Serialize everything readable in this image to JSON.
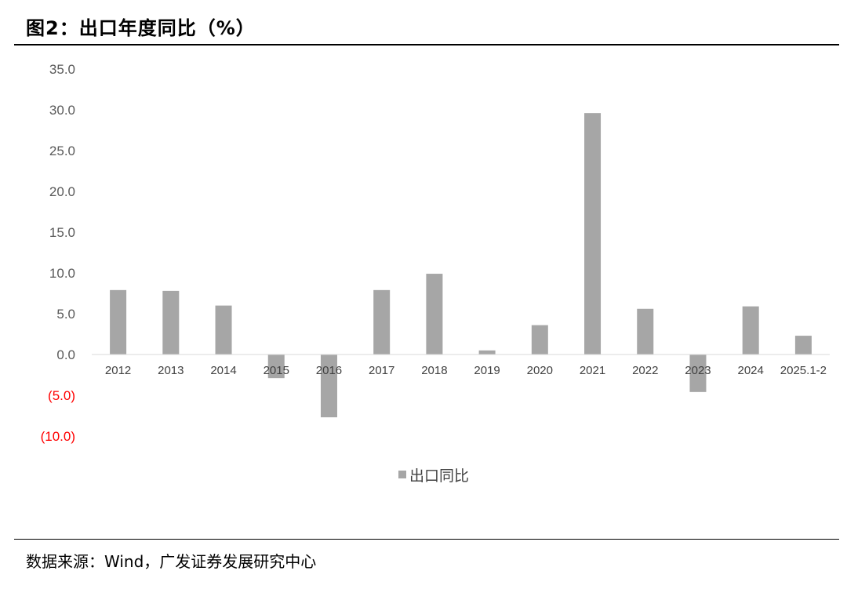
{
  "header": {
    "title": "图2：出口年度同比（%）"
  },
  "footer": {
    "source": "数据来源：Wind，广发证券发展研究中心"
  },
  "colors": {
    "bar": "#a6a6a6",
    "negative_tick": "#ff0000",
    "tick": "#595959"
  },
  "chart_data": {
    "type": "bar",
    "title": "",
    "xlabel": "",
    "ylabel": "",
    "categories": [
      "2012",
      "2013",
      "2014",
      "2015",
      "2016",
      "2017",
      "2018",
      "2019",
      "2020",
      "2021",
      "2022",
      "2023",
      "2024",
      "2025.1-2"
    ],
    "series": [
      {
        "name": "出口同比",
        "values": [
          7.9,
          7.8,
          6.0,
          -2.9,
          -7.7,
          7.9,
          9.9,
          0.5,
          3.6,
          29.6,
          5.6,
          -4.6,
          5.9,
          2.3
        ]
      }
    ],
    "ylim": [
      -10,
      35
    ],
    "yticks": [
      35,
      30,
      25,
      20,
      15,
      10,
      5,
      0,
      -5,
      -10
    ],
    "ytick_labels": [
      "35.0",
      "30.0",
      "25.0",
      "20.0",
      "15.0",
      "10.0",
      "5.0",
      "0.0",
      "(5.0)",
      "(10.0)"
    ],
    "legend": {
      "position": "bottom-center",
      "entries": [
        "出口同比"
      ]
    },
    "grid": false
  }
}
